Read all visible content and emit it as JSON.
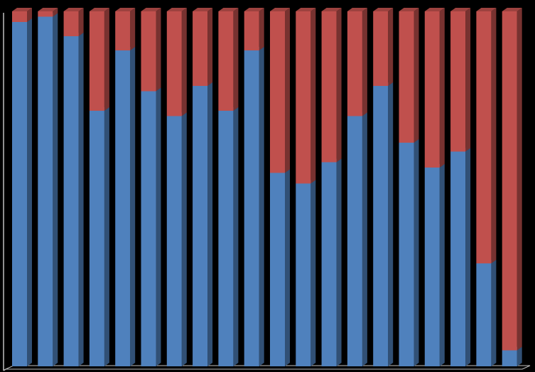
{
  "chart_data": {
    "type": "bar",
    "stacked": true,
    "percent_stacked": true,
    "three_d": true,
    "ylim": [
      0,
      100
    ],
    "grid": false,
    "legend": "none",
    "series": [
      {
        "color": "#4f81bd",
        "values": [
          97,
          98.5,
          93,
          72,
          89,
          77.5,
          70.5,
          79,
          72,
          89,
          54.5,
          51.5,
          57.5,
          70.5,
          79,
          63,
          56,
          60.5,
          29,
          4.5
        ]
      },
      {
        "color": "#c0504d",
        "values": [
          3,
          1.5,
          7,
          28,
          11,
          22.5,
          29.5,
          21,
          28,
          11,
          45.5,
          48.5,
          42.5,
          29.5,
          21,
          37,
          44,
          39.5,
          71,
          95.5
        ]
      }
    ]
  },
  "colors": {
    "background": "#000000",
    "axis": "#bfbfbf",
    "series1": "#4f81bd",
    "series2": "#c0504d"
  }
}
